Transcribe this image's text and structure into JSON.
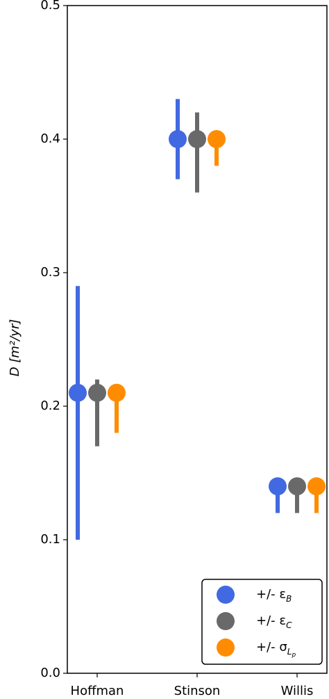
{
  "chart_data": {
    "type": "errorpoint",
    "ylabel": "D [m²/yr]",
    "categories": [
      "Hoffman",
      "Stinson",
      "Willis"
    ],
    "series": [
      {
        "name": "+/- ε",
        "name_sub": [
          "B"
        ],
        "color": "#4169e1",
        "values": [
          0.21,
          0.4,
          0.14
        ],
        "errors": [
          [
            0.11,
            0.08
          ],
          [
            0.03,
            0.03
          ],
          [
            0.02,
            0
          ]
        ]
      },
      {
        "name": "+/- ε",
        "name_sub": [
          "C"
        ],
        "color": "#696969",
        "values": [
          0.21,
          0.4,
          0.14
        ],
        "errors": [
          [
            0.04,
            0.01
          ],
          [
            0.04,
            0.02
          ],
          [
            0.02,
            0
          ]
        ]
      },
      {
        "name": "+/- σ",
        "name_sub": [
          "L",
          "p"
        ],
        "color": "#ff8c00",
        "values": [
          0.21,
          0.4,
          0.14
        ],
        "errors": [
          [
            0.03,
            0
          ],
          [
            0.02,
            0
          ],
          [
            0.02,
            0
          ]
        ]
      }
    ],
    "ylim": [
      0,
      0.5
    ],
    "yticks": [
      {
        "value": 0,
        "label": "0.0"
      },
      0.1,
      0.2,
      0.3,
      0.4,
      0.5
    ],
    "legend": "lower right"
  }
}
